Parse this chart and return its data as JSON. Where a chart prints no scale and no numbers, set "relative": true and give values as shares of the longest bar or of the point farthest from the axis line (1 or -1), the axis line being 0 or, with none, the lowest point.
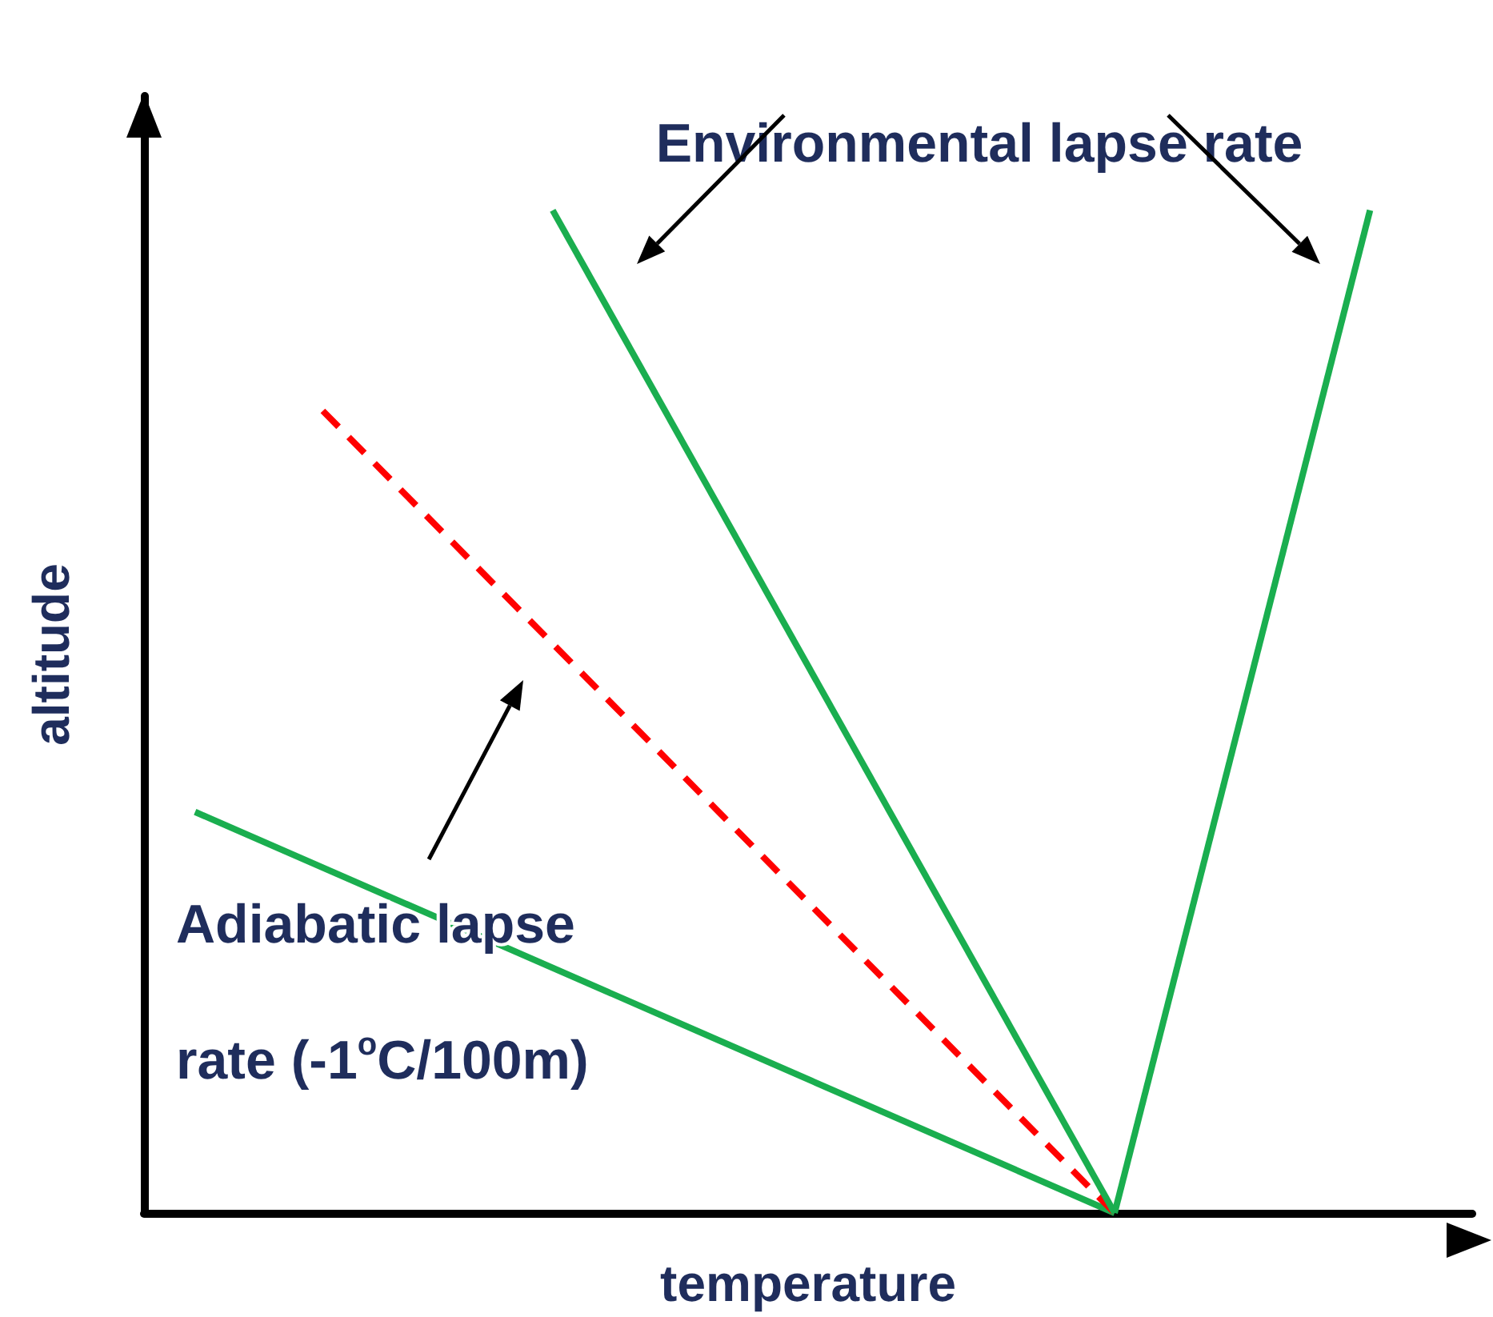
{
  "chart_data": {
    "type": "line",
    "relative": true,
    "xlabel": "temperature",
    "ylabel": "altitude",
    "categories": [
      null,
      null,
      null,
      null,
      null,
      null,
      null,
      null,
      null,
      null,
      null,
      null,
      null,
      null,
      null,
      null,
      null,
      null,
      null,
      null,
      null,
      null,
      null,
      null,
      null,
      null,
      null,
      null,
      null,
      null,
      null,
      null,
      null,
      null,
      null,
      null,
      null,
      null,
      null,
      null,
      null,
      null,
      null,
      null,
      null,
      null,
      null,
      null,
      null,
      null,
      null,
      null,
      null
    ],
    "series": [
      {
        "color": "#1aae4f",
        "line_style": "solid",
        "values": [
          null,
          null,
          0.4,
          null,
          null,
          null,
          null,
          null,
          null,
          null,
          null,
          null,
          null,
          null,
          null,
          null,
          null,
          null,
          null,
          null,
          null,
          null,
          null,
          null,
          null,
          null,
          null,
          null,
          null,
          null,
          null,
          null,
          null,
          null,
          null,
          null,
          null,
          null,
          0,
          null,
          null,
          null,
          null,
          null,
          null,
          null,
          null,
          null,
          null,
          null,
          null,
          null,
          null
        ]
      },
      {
        "color": "#ff0000",
        "line_style": "dashed",
        "values": [
          null,
          null,
          null,
          null,
          null,
          null,
          null,
          0.8,
          null,
          null,
          null,
          null,
          null,
          null,
          null,
          null,
          null,
          null,
          null,
          null,
          null,
          null,
          null,
          null,
          null,
          null,
          null,
          null,
          null,
          null,
          null,
          null,
          null,
          null,
          null,
          null,
          null,
          null,
          0,
          null,
          null,
          null,
          null,
          null,
          null,
          null,
          null,
          null,
          null,
          null,
          null,
          null,
          null
        ]
      },
      {
        "color": "#1aae4f",
        "line_style": "solid",
        "values": [
          null,
          null,
          null,
          null,
          null,
          null,
          null,
          null,
          null,
          null,
          null,
          null,
          null,
          null,
          null,
          null,
          1,
          null,
          null,
          null,
          null,
          null,
          null,
          null,
          null,
          null,
          null,
          null,
          null,
          null,
          null,
          null,
          null,
          null,
          null,
          null,
          null,
          null,
          0,
          null,
          null,
          null,
          null,
          null,
          null,
          null,
          null,
          null,
          null,
          null,
          null,
          null,
          null
        ]
      },
      {
        "color": "#1aae4f",
        "line_style": "solid",
        "values": [
          null,
          null,
          null,
          null,
          null,
          null,
          null,
          null,
          null,
          null,
          null,
          null,
          null,
          null,
          null,
          null,
          null,
          null,
          null,
          null,
          null,
          null,
          null,
          null,
          null,
          null,
          null,
          null,
          null,
          null,
          null,
          null,
          null,
          null,
          null,
          null,
          null,
          null,
          0,
          null,
          null,
          null,
          null,
          null,
          null,
          null,
          null,
          null,
          1,
          null,
          null,
          null,
          null
        ]
      }
    ],
    "marker": "none",
    "grid": false,
    "annotations": [
      "Environmental lapse rate",
      "Adiabatic lapse rate (-1$^{o}$C/100m)"
    ]
  }
}
